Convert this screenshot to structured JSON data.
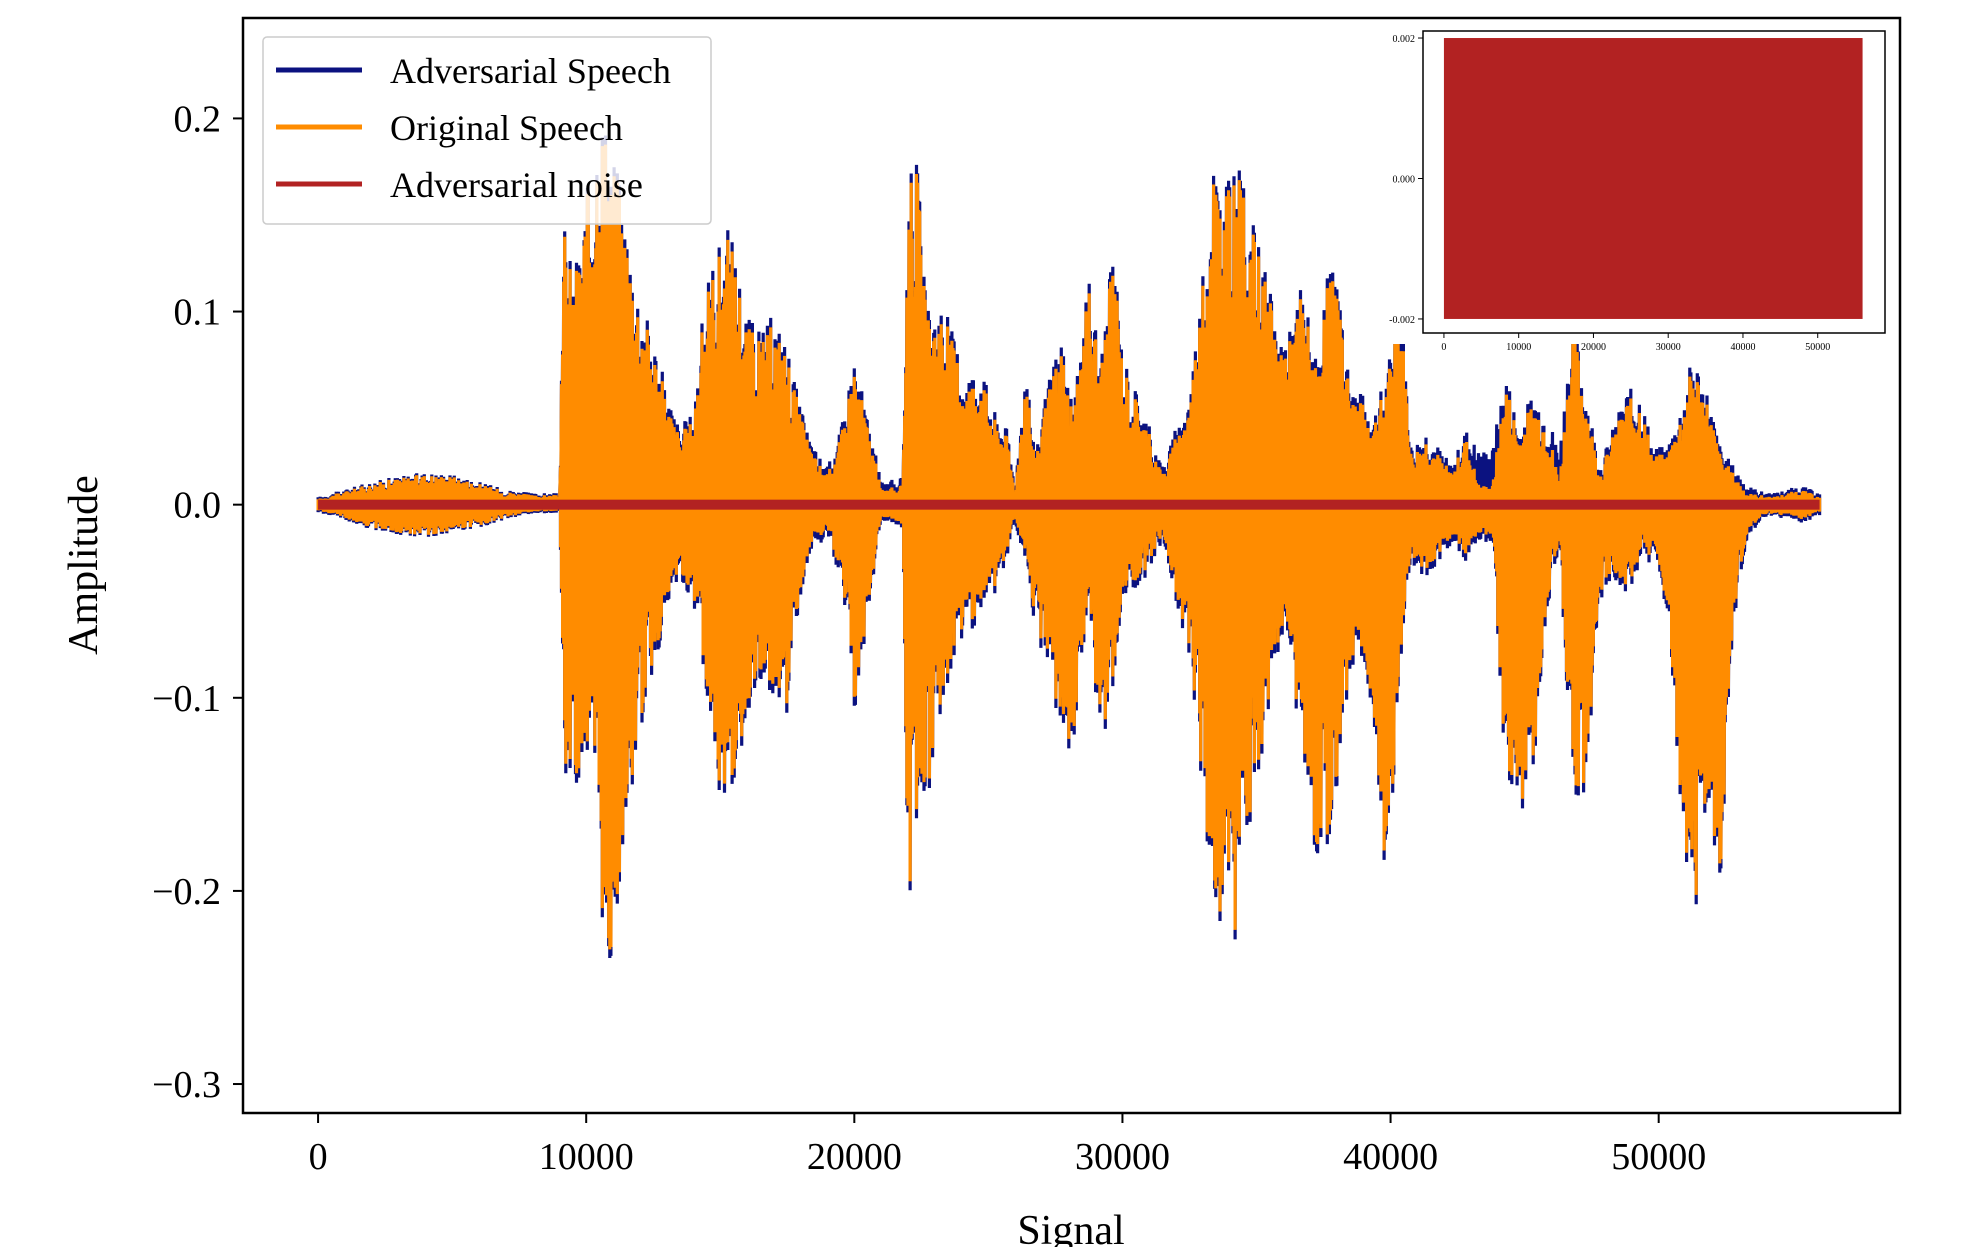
{
  "chart_data": [
    {
      "type": "line",
      "title": "",
      "xlabel": "Signal",
      "ylabel": "Amplitude",
      "xlim": [
        -2800,
        59000
      ],
      "ylim": [
        -0.315,
        0.252
      ],
      "xticks": [
        0,
        10000,
        20000,
        30000,
        40000,
        50000
      ],
      "xtick_labels": [
        "0",
        "10000",
        "20000",
        "30000",
        "40000",
        "50000"
      ],
      "yticks": [
        0.2,
        0.1,
        0.0,
        -0.1,
        -0.2,
        -0.3
      ],
      "ytick_labels": [
        "0.2",
        "0.1",
        "0.0",
        "−0.1",
        "−0.2",
        "−0.3"
      ],
      "grid": false,
      "legend_position": "top-left",
      "n_samples": 56000,
      "series": [
        {
          "name": "Adversarial Speech",
          "color": "#0b1280",
          "envelope": {
            "x": [
              0,
              1000,
              2000,
              3000,
              4000,
              5000,
              6000,
              7000,
              8000,
              9000,
              9200,
              9500,
              10000,
              10500,
              10800,
              11000,
              11500,
              12000,
              12500,
              13000,
              13500,
              14000,
              14500,
              15000,
              15400,
              16000,
              16500,
              17000,
              17500,
              18000,
              18500,
              19000,
              19500,
              20000,
              21000,
              21800,
              22000,
              22300,
              22700,
              23200,
              23700,
              24200,
              24700,
              25200,
              25700,
              26000,
              26400,
              26700,
              27200,
              27700,
              28200,
              28700,
              29200,
              29700,
              30000,
              30800,
              31500,
              32500,
              33000,
              33400,
              33800,
              34200,
              34700,
              35200,
              35700,
              36200,
              36700,
              37300,
              37800,
              38300,
              38800,
              39400,
              39900,
              40300,
              40800,
              41300,
              41800,
              42300,
              42800,
              43300,
              43800,
              44300,
              44800,
              45300,
              45800,
              46300,
              46800,
              47300,
              47800,
              48300,
              48800,
              49300,
              49800,
              50300,
              50800,
              51300,
              51800,
              52300,
              52800,
              53300,
              53800,
              54300,
              54800,
              55300,
              56000
            ],
            "upper": [
              0.004,
              0.008,
              0.012,
              0.015,
              0.017,
              0.016,
              0.012,
              0.008,
              0.006,
              0.006,
              0.153,
              0.12,
              0.16,
              0.215,
              0.2,
              0.19,
              0.15,
              0.11,
              0.09,
              0.06,
              0.04,
              0.05,
              0.12,
              0.14,
              0.145,
              0.1,
              0.09,
              0.1,
              0.085,
              0.05,
              0.03,
              0.02,
              0.04,
              0.08,
              0.012,
              0.014,
              0.17,
              0.19,
              0.1,
              0.11,
              0.09,
              0.07,
              0.075,
              0.05,
              0.04,
              0.01,
              0.08,
              0.03,
              0.06,
              0.09,
              0.05,
              0.12,
              0.08,
              0.14,
              0.08,
              0.05,
              0.02,
              0.06,
              0.12,
              0.19,
              0.165,
              0.18,
              0.16,
              0.13,
              0.1,
              0.09,
              0.12,
              0.07,
              0.14,
              0.08,
              0.06,
              0.05,
              0.07,
              0.12,
              0.03,
              0.04,
              0.03,
              0.02,
              0.04,
              0.028,
              0.029,
              0.07,
              0.04,
              0.06,
              0.05,
              0.028,
              0.1,
              0.06,
              0.02,
              0.04,
              0.06,
              0.06,
              0.03,
              0.03,
              0.05,
              0.08,
              0.06,
              0.03,
              0.02,
              0.01,
              0.007,
              0.006,
              0.008,
              0.01,
              0.006
            ],
            "lower": [
              -0.004,
              -0.008,
              -0.013,
              -0.016,
              -0.017,
              -0.015,
              -0.012,
              -0.008,
              -0.005,
              -0.004,
              -0.14,
              -0.15,
              -0.14,
              -0.19,
              -0.29,
              -0.23,
              -0.17,
              -0.12,
              -0.09,
              -0.06,
              -0.04,
              -0.05,
              -0.1,
              -0.155,
              -0.16,
              -0.11,
              -0.09,
              -0.1,
              -0.11,
              -0.05,
              -0.02,
              -0.02,
              -0.04,
              -0.11,
              -0.008,
              -0.012,
              -0.233,
              -0.17,
              -0.16,
              -0.11,
              -0.08,
              -0.07,
              -0.06,
              -0.05,
              -0.03,
              -0.01,
              -0.03,
              -0.06,
              -0.09,
              -0.12,
              -0.135,
              -0.05,
              -0.13,
              -0.09,
              -0.05,
              -0.04,
              -0.02,
              -0.08,
              -0.15,
              -0.23,
              -0.21,
              -0.23,
              -0.17,
              -0.13,
              -0.08,
              -0.07,
              -0.14,
              -0.19,
              -0.17,
              -0.11,
              -0.07,
              -0.12,
              -0.215,
              -0.09,
              -0.03,
              -0.04,
              -0.03,
              -0.02,
              -0.03,
              -0.02,
              -0.02,
              -0.15,
              -0.16,
              -0.15,
              -0.06,
              -0.02,
              -0.16,
              -0.15,
              -0.05,
              -0.04,
              -0.05,
              -0.03,
              -0.03,
              -0.06,
              -0.16,
              -0.228,
              -0.16,
              -0.2,
              -0.06,
              -0.02,
              -0.008,
              -0.006,
              -0.008,
              -0.01,
              -0.006
            ]
          }
        },
        {
          "name": "Original Speech",
          "color": "#ff8c00",
          "envelope": {
            "x": [
              0,
              1000,
              2000,
              3000,
              4000,
              5000,
              6000,
              7000,
              8000,
              9000,
              9200,
              9500,
              10000,
              10500,
              10800,
              11000,
              11500,
              12000,
              12500,
              13000,
              13500,
              14000,
              14500,
              15000,
              15400,
              16000,
              16500,
              17000,
              17500,
              18000,
              18500,
              19000,
              19500,
              20000,
              21000,
              21800,
              22000,
              22300,
              22700,
              23200,
              23700,
              24200,
              24700,
              25200,
              25700,
              26000,
              26400,
              26700,
              27200,
              27700,
              28200,
              28700,
              29200,
              29700,
              30000,
              30800,
              31500,
              32500,
              33000,
              33400,
              33800,
              34200,
              34700,
              35200,
              35700,
              36200,
              36700,
              37300,
              37800,
              38300,
              38800,
              39400,
              39900,
              40300,
              40800,
              41300,
              41800,
              42300,
              42800,
              43300,
              43800,
              44300,
              44800,
              45300,
              45800,
              46300,
              46800,
              47300,
              47800,
              48300,
              48800,
              49300,
              49800,
              50300,
              50800,
              51300,
              51800,
              52300,
              52800,
              53300,
              53800,
              54300,
              54800,
              55300,
              56000
            ],
            "upper": [
              0.003,
              0.007,
              0.011,
              0.014,
              0.016,
              0.015,
              0.011,
              0.007,
              0.005,
              0.005,
              0.15,
              0.115,
              0.157,
              0.21,
              0.195,
              0.185,
              0.145,
              0.105,
              0.085,
              0.055,
              0.036,
              0.046,
              0.115,
              0.135,
              0.14,
              0.095,
              0.085,
              0.095,
              0.08,
              0.046,
              0.026,
              0.016,
              0.036,
              0.075,
              0.008,
              0.01,
              0.165,
              0.185,
              0.095,
              0.105,
              0.085,
              0.065,
              0.07,
              0.046,
              0.036,
              0.006,
              0.075,
              0.026,
              0.055,
              0.085,
              0.046,
              0.115,
              0.075,
              0.135,
              0.075,
              0.046,
              0.016,
              0.055,
              0.115,
              0.185,
              0.16,
              0.175,
              0.155,
              0.125,
              0.095,
              0.085,
              0.115,
              0.065,
              0.135,
              0.075,
              0.055,
              0.046,
              0.065,
              0.115,
              0.026,
              0.036,
              0.026,
              0.016,
              0.036,
              0.01,
              0.01,
              0.065,
              0.036,
              0.055,
              0.046,
              0.012,
              0.095,
              0.055,
              0.016,
              0.036,
              0.055,
              0.055,
              0.026,
              0.026,
              0.046,
              0.075,
              0.055,
              0.026,
              0.016,
              0.006,
              0.005,
              0.004,
              0.006,
              0.008,
              0.004
            ],
            "lower": [
              -0.003,
              -0.007,
              -0.012,
              -0.015,
              -0.016,
              -0.014,
              -0.011,
              -0.007,
              -0.004,
              -0.003,
              -0.135,
              -0.145,
              -0.135,
              -0.185,
              -0.285,
              -0.225,
              -0.165,
              -0.115,
              -0.085,
              -0.055,
              -0.036,
              -0.046,
              -0.095,
              -0.15,
              -0.155,
              -0.105,
              -0.085,
              -0.095,
              -0.105,
              -0.046,
              -0.016,
              -0.016,
              -0.036,
              -0.105,
              -0.006,
              -0.01,
              -0.228,
              -0.165,
              -0.155,
              -0.105,
              -0.075,
              -0.065,
              -0.055,
              -0.046,
              -0.026,
              -0.006,
              -0.026,
              -0.055,
              -0.085,
              -0.115,
              -0.13,
              -0.046,
              -0.125,
              -0.085,
              -0.046,
              -0.036,
              -0.016,
              -0.075,
              -0.145,
              -0.225,
              -0.205,
              -0.225,
              -0.165,
              -0.125,
              -0.075,
              -0.065,
              -0.135,
              -0.185,
              -0.165,
              -0.105,
              -0.065,
              -0.115,
              -0.21,
              -0.085,
              -0.026,
              -0.036,
              -0.026,
              -0.016,
              -0.026,
              -0.016,
              -0.016,
              -0.145,
              -0.155,
              -0.145,
              -0.055,
              -0.016,
              -0.155,
              -0.145,
              -0.046,
              -0.036,
              -0.046,
              -0.026,
              -0.026,
              -0.055,
              -0.155,
              -0.223,
              -0.155,
              -0.195,
              -0.055,
              -0.016,
              -0.006,
              -0.005,
              -0.006,
              -0.008,
              -0.004
            ]
          }
        },
        {
          "name": "Adversarial noise",
          "color": "#b22222",
          "amplitude": 0.002
        }
      ]
    },
    {
      "type": "line",
      "title": "",
      "xlabel": "",
      "ylabel": "",
      "xlim": [
        -2800,
        59000
      ],
      "ylim": [
        -0.0022,
        0.0021
      ],
      "xticks": [
        0,
        10000,
        20000,
        30000,
        40000,
        50000
      ],
      "xtick_labels": [
        "0",
        "10000",
        "20000",
        "30000",
        "40000",
        "50000"
      ],
      "yticks": [
        0.002,
        0.0,
        -0.002
      ],
      "ytick_labels": [
        "0.002",
        "0.000",
        "-0.002"
      ],
      "series": [
        {
          "color": "#b22222",
          "x_range": [
            0,
            56000
          ],
          "amplitude": 0.002
        }
      ]
    }
  ]
}
